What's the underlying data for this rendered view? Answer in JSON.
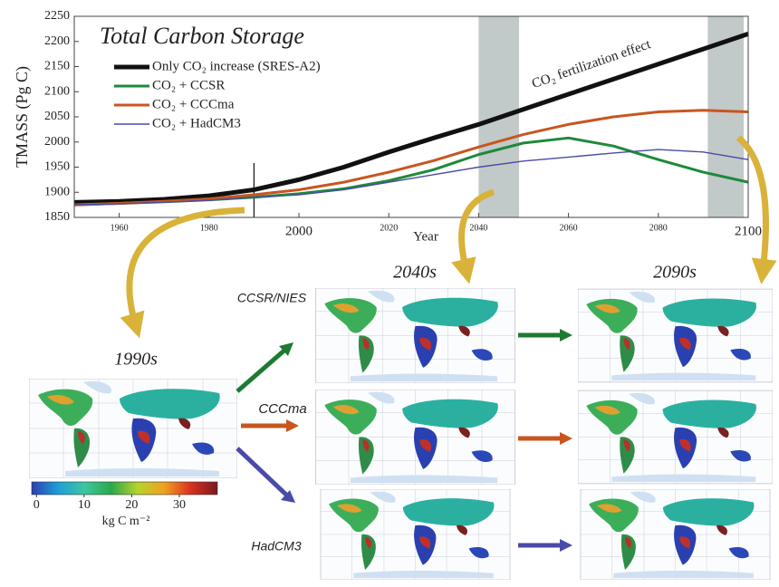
{
  "chart_data": [
    {
      "type": "line",
      "title": "Total Carbon Storage",
      "y_label": "TMASS (Pg C)",
      "x_label": "Year",
      "annotation": "CO₂ fertilization effect",
      "x": [
        1950,
        1960,
        1970,
        1980,
        1990,
        2000,
        2010,
        2020,
        2030,
        2040,
        2050,
        2060,
        2070,
        2080,
        2090,
        2100
      ],
      "series": [
        {
          "name": "Only CO₂ increase (SRES-A2)",
          "color": "#111111",
          "values": [
            1880,
            1882,
            1886,
            1893,
            1905,
            1925,
            1950,
            1980,
            2008,
            2035,
            2065,
            2095,
            2125,
            2155,
            2185,
            2215
          ]
        },
        {
          "name": "CO₂ + CCSR",
          "color": "#1e8a3a",
          "values": [
            1875,
            1878,
            1881,
            1885,
            1890,
            1897,
            1907,
            1923,
            1945,
            1975,
            1998,
            2008,
            1992,
            1965,
            1940,
            1920
          ]
        },
        {
          "name": "CO₂ + CCCma",
          "color": "#c8561e",
          "values": [
            1875,
            1878,
            1882,
            1887,
            1895,
            1905,
            1920,
            1940,
            1963,
            1990,
            2015,
            2035,
            2050,
            2060,
            2063,
            2060
          ]
        },
        {
          "name": "CO₂ + HadCM3",
          "color": "#4a4aa8",
          "values": [
            1875,
            1877,
            1880,
            1884,
            1890,
            1895,
            1905,
            1920,
            1935,
            1950,
            1962,
            1970,
            1978,
            1985,
            1980,
            1965
          ]
        }
      ],
      "shaded_spans": [
        [
          2040,
          2049
        ],
        [
          2091,
          2099
        ]
      ],
      "marker_x": 1990,
      "xlim": [
        1950,
        2100
      ],
      "xticks": [
        1960,
        1980,
        2000,
        2020,
        2040,
        2060,
        2080,
        2100
      ],
      "ylim": [
        1850,
        2250
      ],
      "yticks": [
        1850,
        1900,
        1950,
        2000,
        2050,
        2100,
        2150,
        2200,
        2250
      ]
    },
    {
      "type": "colorbar",
      "x_label": "kg C m⁻²",
      "colors": [
        "#2a3fb0",
        "#1e9fd8",
        "#3ec6a0",
        "#2aa84a",
        "#b8d42a",
        "#f0a020",
        "#d83020",
        "#7a1a20"
      ],
      "xlim": [
        -1,
        38
      ],
      "xticks": [
        0,
        10,
        20,
        30
      ]
    }
  ],
  "figure": {
    "periods": [
      "1990s",
      "2040s",
      "2090s"
    ],
    "models": [
      "CCSR/NIES",
      "CCCma",
      "HadCM3"
    ]
  }
}
